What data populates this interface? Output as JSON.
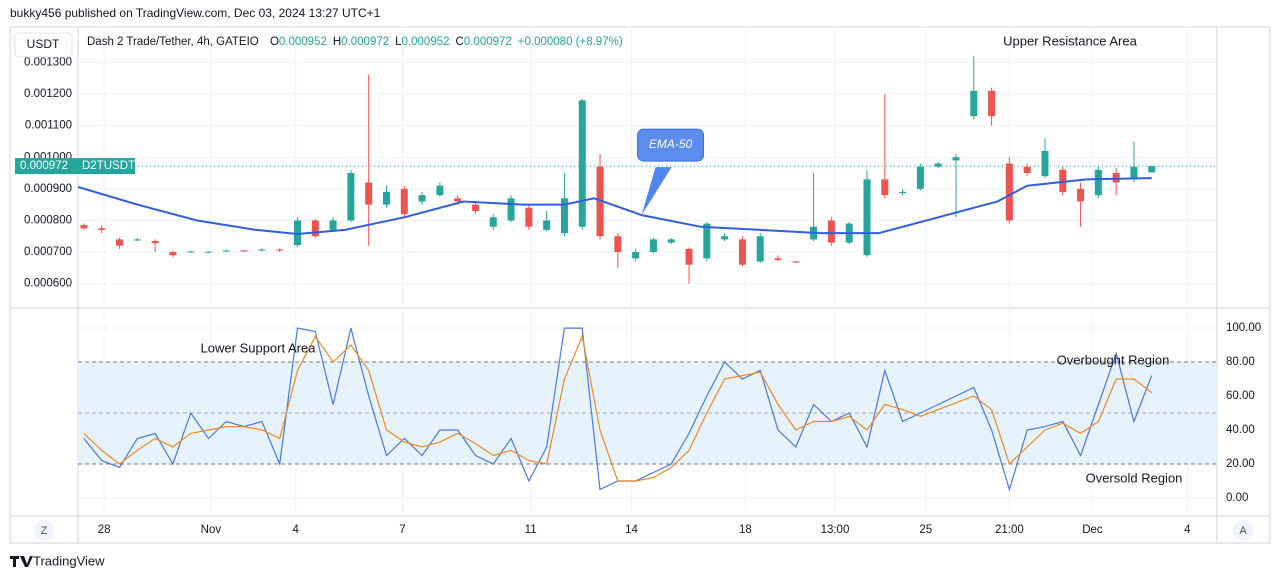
{
  "header": {
    "publisher": "bukky456 published on TradingView.com, Dec 03, 2024 13:27 UTC+1",
    "currency": "USDT",
    "symbol": "Dash 2 Trade/Tether, 4h, GATEIO",
    "ohlc": [
      {
        "key": "O",
        "value": "0.000952"
      },
      {
        "key": "H",
        "value": "0.000972"
      },
      {
        "key": "L",
        "value": "0.000952"
      },
      {
        "key": "C",
        "value": "0.000972"
      }
    ],
    "change": "+0.000080 (+8.97%)",
    "last_price": "0.000972",
    "ticker": "D2TUSDT"
  },
  "chart_data": [
    {
      "type": "candlestick",
      "up_color": "#26a69a",
      "down_color": "#ef5350",
      "grid": true,
      "xlim": [
        0,
        192
      ],
      "ylim": [
        0.000523,
        0.001412
      ],
      "yticks": [
        {
          "value": 0.0006,
          "label": "0.000600"
        },
        {
          "value": 0.0007,
          "label": "0.000700"
        },
        {
          "value": 0.0008,
          "label": "0.000800"
        },
        {
          "value": 0.0009,
          "label": "0.000900"
        },
        {
          "value": 0.001,
          "label": "0.001000"
        },
        {
          "value": 0.0011,
          "label": "0.001100"
        },
        {
          "value": 0.0012,
          "label": "0.001200"
        },
        {
          "value": 0.0013,
          "label": "0.001300"
        }
      ],
      "x": [
        1,
        4,
        7,
        10,
        13,
        16,
        19,
        22,
        25,
        28,
        31,
        34,
        37,
        40,
        43,
        46,
        49,
        52,
        55,
        58,
        61,
        64,
        67,
        70,
        73,
        76,
        79,
        82,
        85,
        88,
        91,
        94,
        97,
        100,
        103,
        106,
        109,
        112,
        115,
        118,
        121,
        124,
        127,
        130,
        133,
        136,
        139,
        142,
        145,
        148,
        151,
        154,
        157,
        160,
        163,
        166,
        169,
        172,
        175,
        178,
        181
      ],
      "open": [
        0.000785,
        0.000775,
        0.00074,
        0.000738,
        0.000735,
        0.0007,
        0.0007,
        0.0007,
        0.000703,
        0.000705,
        0.000706,
        0.000708,
        0.000722,
        0.0008,
        0.00077,
        0.0008,
        0.00092,
        0.00085,
        0.0009,
        0.00086,
        0.00088,
        0.00087,
        0.00085,
        0.00078,
        0.0008,
        0.00084,
        0.00077,
        0.00076,
        0.00078,
        0.00097,
        0.00075,
        0.00068,
        0.0007,
        0.00073,
        0.00071,
        0.00068,
        0.00074,
        0.00074,
        0.00067,
        0.00068,
        0.00067,
        0.00074,
        0.0008,
        0.00073,
        0.00069,
        0.00093,
        0.00089,
        0.0009,
        0.00097,
        0.00099,
        0.00113,
        0.00121,
        0.00098,
        0.00097,
        0.00094,
        0.00096,
        0.0009,
        0.00088,
        0.00095,
        0.00093,
        0.000952
      ],
      "high": [
        0.00079,
        0.000785,
        0.000745,
        0.000745,
        0.00074,
        0.000705,
        0.000705,
        0.000703,
        0.000708,
        0.000707,
        0.000712,
        0.000712,
        0.00081,
        0.000805,
        0.00081,
        0.00096,
        0.001262,
        0.00091,
        0.00091,
        0.00089,
        0.00092,
        0.00088,
        0.00086,
        0.00082,
        0.00088,
        0.00085,
        0.00083,
        0.00095,
        0.001185,
        0.00101,
        0.00076,
        0.00071,
        0.000745,
        0.000745,
        0.000715,
        0.000795,
        0.00076,
        0.00075,
        0.00076,
        0.00069,
        0.000672,
        0.00095,
        0.00081,
        0.000795,
        0.00096,
        0.0012,
        0.0009,
        0.00098,
        0.000985,
        0.00101,
        0.00132,
        0.00122,
        0.001,
        0.00098,
        0.00106,
        0.00097,
        0.00092,
        0.00097,
        0.000965,
        0.00105,
        0.000972
      ],
      "low": [
        0.00077,
        0.00076,
        0.00071,
        0.000735,
        0.0007,
        0.000685,
        0.000698,
        0.000698,
        0.0007,
        0.0007,
        0.000702,
        0.0007,
        0.000715,
        0.000745,
        0.000765,
        0.000795,
        0.00072,
        0.00084,
        0.00081,
        0.00085,
        0.000875,
        0.00085,
        0.00082,
        0.00077,
        0.000795,
        0.00077,
        0.000765,
        0.00075,
        0.00077,
        0.00074,
        0.00065,
        0.00067,
        0.000695,
        0.000725,
        0.0006,
        0.00067,
        0.000735,
        0.000655,
        0.000665,
        0.00067,
        0.000665,
        0.000735,
        0.00072,
        0.000725,
        0.000685,
        0.00087,
        0.00088,
        0.000895,
        0.000965,
        0.00081,
        0.00112,
        0.0011,
        0.00079,
        0.00094,
        0.000935,
        0.00088,
        0.00078,
        0.00087,
        0.00088,
        0.00092,
        0.000952
      ],
      "close": [
        0.000775,
        0.00077,
        0.00072,
        0.00074,
        0.000728,
        0.00069,
        0.000702,
        0.000701,
        0.000705,
        0.000703,
        0.000708,
        0.000705,
        0.0008,
        0.00075,
        0.0008,
        0.00095,
        0.00085,
        0.00089,
        0.00082,
        0.00088,
        0.00091,
        0.00086,
        0.00083,
        0.00081,
        0.00087,
        0.00078,
        0.0008,
        0.00087,
        0.00118,
        0.00075,
        0.0007,
        0.0007,
        0.00074,
        0.00074,
        0.00066,
        0.00079,
        0.00075,
        0.00066,
        0.00075,
        0.000675,
        0.000668,
        0.00078,
        0.00073,
        0.00079,
        0.00093,
        0.00088,
        0.00089,
        0.00097,
        0.00098,
        0.001,
        0.00121,
        0.00113,
        0.0008,
        0.00095,
        0.00102,
        0.00089,
        0.00086,
        0.00096,
        0.00092,
        0.00097,
        0.000972
      ],
      "series": [
        {
          "name": "EMA-50",
          "color": "#2f5fe0",
          "x": [
            0,
            10,
            20,
            30,
            37,
            45,
            55,
            65,
            75,
            82,
            87,
            95,
            105,
            115,
            125,
            135,
            145,
            155,
            160,
            170,
            181
          ],
          "values": [
            0.000906,
            0.00085,
            0.0008,
            0.00077,
            0.000757,
            0.00077,
            0.00081,
            0.00086,
            0.00085,
            0.00085,
            0.00087,
            0.000817,
            0.00078,
            0.00077,
            0.00076,
            0.00076,
            0.00081,
            0.00086,
            0.00091,
            0.00093,
            0.000934
          ]
        }
      ],
      "annotations": [
        "Upper Resistance Area"
      ]
    },
    {
      "type": "line",
      "grid": true,
      "xlim": [
        0,
        192
      ],
      "ylim": [
        -10.6,
        111.8
      ],
      "yticks": [
        {
          "value": 0,
          "label": "0.00"
        },
        {
          "value": 20,
          "label": "20.00"
        },
        {
          "value": 40,
          "label": "40.00"
        },
        {
          "value": 60,
          "label": "60.00"
        },
        {
          "value": 80,
          "label": "80.00"
        },
        {
          "value": 100,
          "label": "100.00"
        }
      ],
      "band": [
        20,
        80
      ],
      "midline": 50,
      "xticks": [
        {
          "value": 4.4,
          "label": "28"
        },
        {
          "value": 22.4,
          "label": "Nov"
        },
        {
          "value": 36.7,
          "label": "4"
        },
        {
          "value": 54.7,
          "label": "7"
        },
        {
          "value": 76.3,
          "label": "11"
        },
        {
          "value": 93.3,
          "label": "14"
        },
        {
          "value": 112.5,
          "label": "18"
        },
        {
          "value": 127.6,
          "label": "13:00"
        },
        {
          "value": 142.9,
          "label": "25"
        },
        {
          "value": 157,
          "label": "21:00"
        },
        {
          "value": 171,
          "label": "Dec"
        },
        {
          "value": 187,
          "label": "4"
        }
      ],
      "x": [
        1,
        4,
        7,
        10,
        13,
        16,
        19,
        22,
        25,
        28,
        31,
        34,
        37,
        40,
        43,
        46,
        49,
        52,
        55,
        58,
        61,
        64,
        67,
        70,
        73,
        76,
        79,
        82,
        85,
        88,
        91,
        94,
        97,
        100,
        103,
        106,
        109,
        112,
        115,
        118,
        121,
        124,
        127,
        130,
        133,
        136,
        139,
        142,
        145,
        148,
        151,
        154,
        157,
        160,
        163,
        166,
        169,
        172,
        175,
        178,
        181
      ],
      "series": [
        {
          "color": "#4a78e8",
          "values": [
            35,
            22,
            18,
            35,
            38,
            20,
            50,
            35,
            45,
            42,
            45,
            20,
            100,
            98,
            55,
            100,
            60,
            25,
            35,
            25,
            40,
            40,
            25,
            20,
            35,
            10,
            30,
            100,
            100,
            5,
            10,
            10,
            15,
            20,
            38,
            60,
            80,
            70,
            75,
            40,
            30,
            55,
            45,
            50,
            30,
            75,
            45,
            50,
            55,
            60,
            65,
            40,
            5,
            40,
            42,
            45,
            25,
            55,
            85,
            45,
            72
          ]
        },
        {
          "color": "#f08a24",
          "values": [
            38,
            28,
            20,
            28,
            35,
            30,
            38,
            40,
            42,
            42,
            40,
            35,
            75,
            95,
            80,
            90,
            75,
            40,
            33,
            30,
            33,
            38,
            32,
            25,
            28,
            22,
            20,
            70,
            95,
            40,
            10,
            10,
            12,
            18,
            28,
            50,
            70,
            72,
            74,
            55,
            40,
            45,
            45,
            48,
            40,
            55,
            52,
            48,
            52,
            56,
            60,
            52,
            20,
            30,
            40,
            44,
            38,
            45,
            70,
            70,
            62
          ]
        }
      ],
      "annotations": [
        "Lower Support Area",
        "Overbought Region",
        "Oversold Region"
      ]
    }
  ],
  "footer": {
    "brand": "TradingView",
    "left_button": "Z",
    "right_button": "A"
  }
}
